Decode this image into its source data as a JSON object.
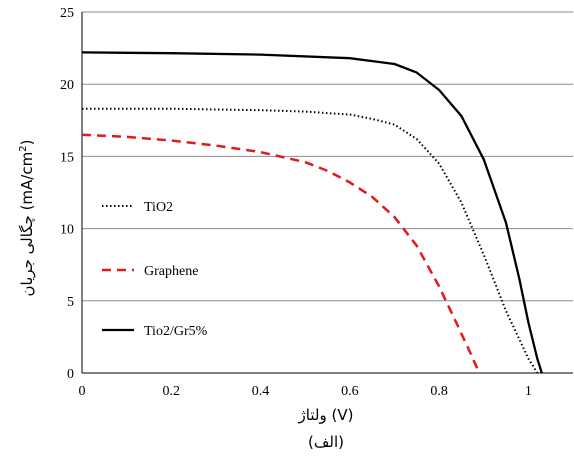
{
  "chart_data": {
    "type": "line",
    "xlabel": "ولتاژ (V)",
    "ylabel_text": "چگالی جریان (mA/cm",
    "ylabel_sup": "2",
    "ylabel_close": ")",
    "caption": "(الف)",
    "xlim": [
      0,
      1.1
    ],
    "ylim": [
      0,
      25
    ],
    "xticks": [
      0,
      0.2,
      0.4,
      0.6,
      0.8,
      1
    ],
    "xtick_labels": [
      "0",
      "0.2",
      "0.4",
      "0.6",
      "0.8",
      "1"
    ],
    "yticks": [
      0,
      5,
      10,
      15,
      20,
      25
    ],
    "ytick_labels": [
      "0",
      "5",
      "10",
      "15",
      "20",
      "25"
    ],
    "grid": "horizontal",
    "legend_placement": "left",
    "series": [
      {
        "name": "TiO2",
        "style": "dotted",
        "color": "#000000",
        "x": [
          0,
          0.1,
          0.2,
          0.3,
          0.4,
          0.5,
          0.55,
          0.6,
          0.65,
          0.7,
          0.75,
          0.8,
          0.85,
          0.9,
          0.95,
          1.0,
          1.02
        ],
        "y": [
          18.3,
          18.3,
          18.3,
          18.25,
          18.2,
          18.1,
          18.0,
          17.9,
          17.6,
          17.2,
          16.2,
          14.5,
          11.8,
          8.2,
          4.3,
          1.0,
          0
        ]
      },
      {
        "name": "Graphene",
        "style": "dashed",
        "color": "#e31a1c",
        "x": [
          0,
          0.1,
          0.2,
          0.3,
          0.4,
          0.5,
          0.55,
          0.6,
          0.65,
          0.7,
          0.75,
          0.8,
          0.84,
          0.87,
          0.89
        ],
        "y": [
          16.5,
          16.35,
          16.1,
          15.75,
          15.3,
          14.6,
          14.0,
          13.2,
          12.2,
          10.8,
          8.8,
          6.0,
          3.4,
          1.4,
          0
        ]
      },
      {
        "name": "Tio2/Gr5%",
        "style": "solid",
        "color": "#000000",
        "x": [
          0,
          0.2,
          0.4,
          0.6,
          0.7,
          0.75,
          0.8,
          0.85,
          0.9,
          0.95,
          0.98,
          1.0,
          1.02,
          1.03
        ],
        "y": [
          22.2,
          22.15,
          22.05,
          21.8,
          21.4,
          20.8,
          19.6,
          17.8,
          14.8,
          10.4,
          6.5,
          3.5,
          1.0,
          0
        ]
      }
    ]
  }
}
